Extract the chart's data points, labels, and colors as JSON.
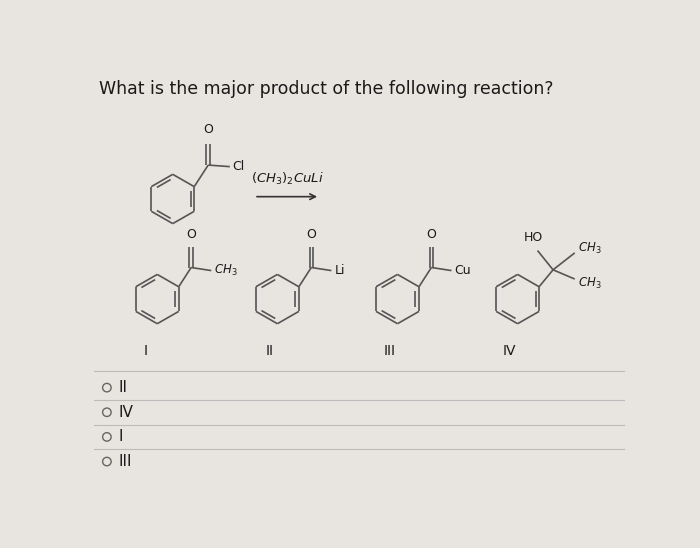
{
  "title": "What is the major product of the following reaction?",
  "background_color": "#e8e4e0",
  "question_fontsize": 12.5,
  "text_color": "#1a1a1a",
  "line_color": "#555555",
  "line_width": 1.2,
  "answer_options": [
    "II",
    "IV",
    "I",
    "III"
  ]
}
